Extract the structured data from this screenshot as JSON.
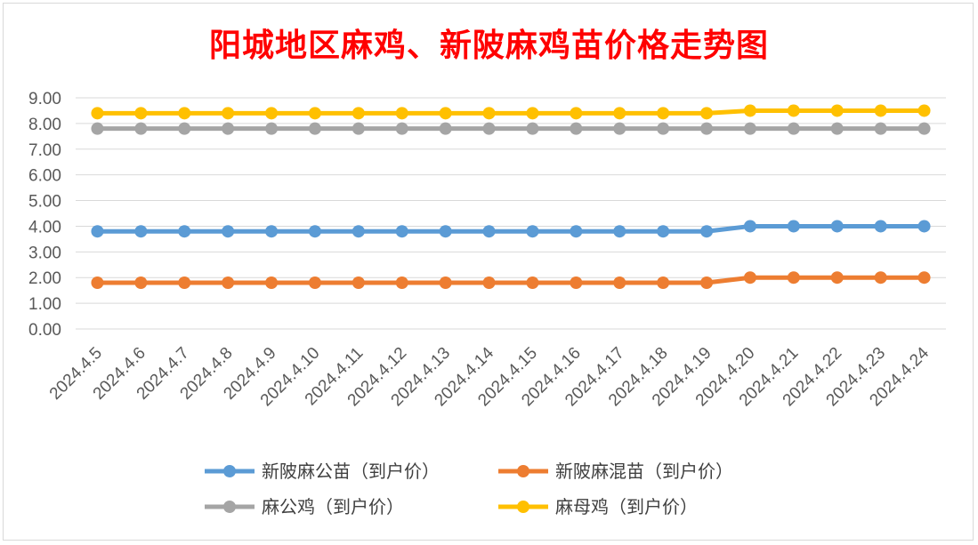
{
  "chart_data": {
    "type": "line",
    "title": "阳城地区麻鸡、新陂麻鸡苗价格走势图",
    "categories": [
      "2024.4.5",
      "2024.4.6",
      "2024.4.7",
      "2024.4.8",
      "2024.4.9",
      "2024.4.10",
      "2024.4.11",
      "2024.4.12",
      "2024.4.13",
      "2024.4.14",
      "2024.4.15",
      "2024.4.16",
      "2024.4.17",
      "2024.4.18",
      "2024.4.19",
      "2024.4.20",
      "2024.4.21",
      "2024.4.22",
      "2024.4.23",
      "2024.4.24"
    ],
    "ylim": [
      0,
      9
    ],
    "yticks": [
      "0.00",
      "1.00",
      "2.00",
      "3.00",
      "4.00",
      "5.00",
      "6.00",
      "7.00",
      "8.00",
      "9.00"
    ],
    "grid": true,
    "legend_position": "bottom",
    "series": [
      {
        "name": "新陂麻公苗（到户价）",
        "color": "#5b9bd5",
        "values": [
          3.8,
          3.8,
          3.8,
          3.8,
          3.8,
          3.8,
          3.8,
          3.8,
          3.8,
          3.8,
          3.8,
          3.8,
          3.8,
          3.8,
          3.8,
          4.0,
          4.0,
          4.0,
          4.0,
          4.0
        ]
      },
      {
        "name": "新陂麻混苗（到户价）",
        "color": "#ed7d31",
        "values": [
          1.8,
          1.8,
          1.8,
          1.8,
          1.8,
          1.8,
          1.8,
          1.8,
          1.8,
          1.8,
          1.8,
          1.8,
          1.8,
          1.8,
          1.8,
          2.0,
          2.0,
          2.0,
          2.0,
          2.0
        ]
      },
      {
        "name": "麻公鸡（到户价）",
        "color": "#a5a5a5",
        "values": [
          7.8,
          7.8,
          7.8,
          7.8,
          7.8,
          7.8,
          7.8,
          7.8,
          7.8,
          7.8,
          7.8,
          7.8,
          7.8,
          7.8,
          7.8,
          7.8,
          7.8,
          7.8,
          7.8,
          7.8
        ]
      },
      {
        "name": "麻母鸡（到户价）",
        "color": "#ffc000",
        "values": [
          8.4,
          8.4,
          8.4,
          8.4,
          8.4,
          8.4,
          8.4,
          8.4,
          8.4,
          8.4,
          8.4,
          8.4,
          8.4,
          8.4,
          8.4,
          8.5,
          8.5,
          8.5,
          8.5,
          8.5
        ]
      }
    ]
  }
}
